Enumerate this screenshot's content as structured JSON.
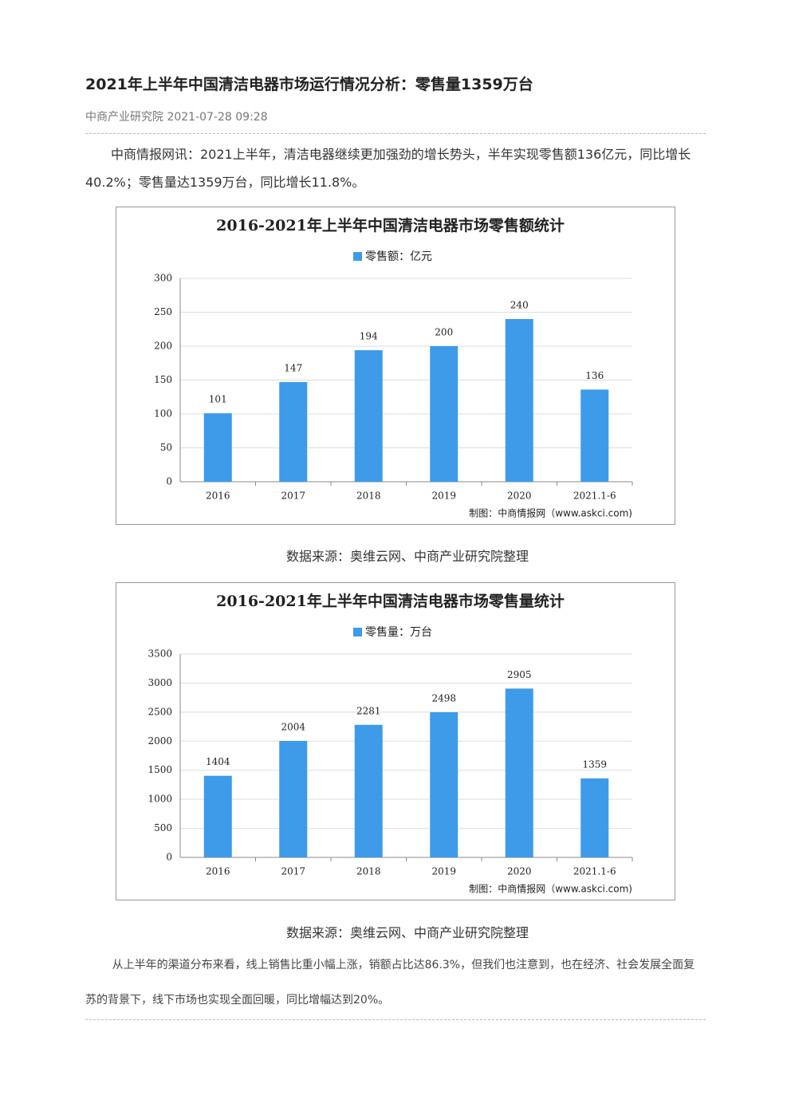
{
  "header": {
    "title": "2021年上半年中国清洁电器市场运行情况分析：零售量1359万台",
    "meta": "中商产业研究院 2021-07-28 09:28"
  },
  "paragraphs": [
    "中商情报网讯：2021上半年，清洁电器继续更加强劲的增长势头，半年实现零售额136亿元，同比增长40.2%；零售量达1359万台，同比增长11.8%。",
    "从上半年的渠道分布来看，线上销售比重小幅上涨，销额占比达86.3%，但我们也注意到，也在经济、社会发展全面复苏的背景下，线下市场也实现全面回暖，同比增幅达到20%。"
  ],
  "captions": [
    "数据来源：奥维云网、中商产业研究院整理",
    "数据来源：奥维云网、中商产业研究院整理"
  ],
  "chart_data": [
    {
      "type": "bar",
      "title": "2016-2021年上半年中国清洁电器市场零售额统计",
      "source": "制图：中商情报网（www.askci.com)",
      "categories": [
        "2016",
        "2017",
        "2018",
        "2019",
        "2020",
        "2021.1-6"
      ],
      "series": [
        {
          "name": "零售额：亿元",
          "color": "#3d9be9",
          "values": [
            101,
            147,
            194,
            200,
            240,
            136
          ]
        }
      ],
      "ylim": [
        0,
        300
      ],
      "yticks": [
        0,
        50,
        100,
        150,
        200,
        250,
        300
      ],
      "grid": true
    },
    {
      "type": "bar",
      "title": "2016-2021年上半年中国清洁电器市场零售量统计",
      "source": "制图：中商情报网（www.askci.com)",
      "categories": [
        "2016",
        "2017",
        "2018",
        "2019",
        "2020",
        "2021.1-6"
      ],
      "series": [
        {
          "name": "零售量：万台",
          "color": "#3d9be9",
          "values": [
            1404,
            2004,
            2281,
            2498,
            2905,
            1359
          ]
        }
      ],
      "ylim": [
        0,
        3500
      ],
      "yticks": [
        0,
        500,
        1000,
        1500,
        2000,
        2500,
        3000,
        3500
      ],
      "grid": true
    }
  ]
}
